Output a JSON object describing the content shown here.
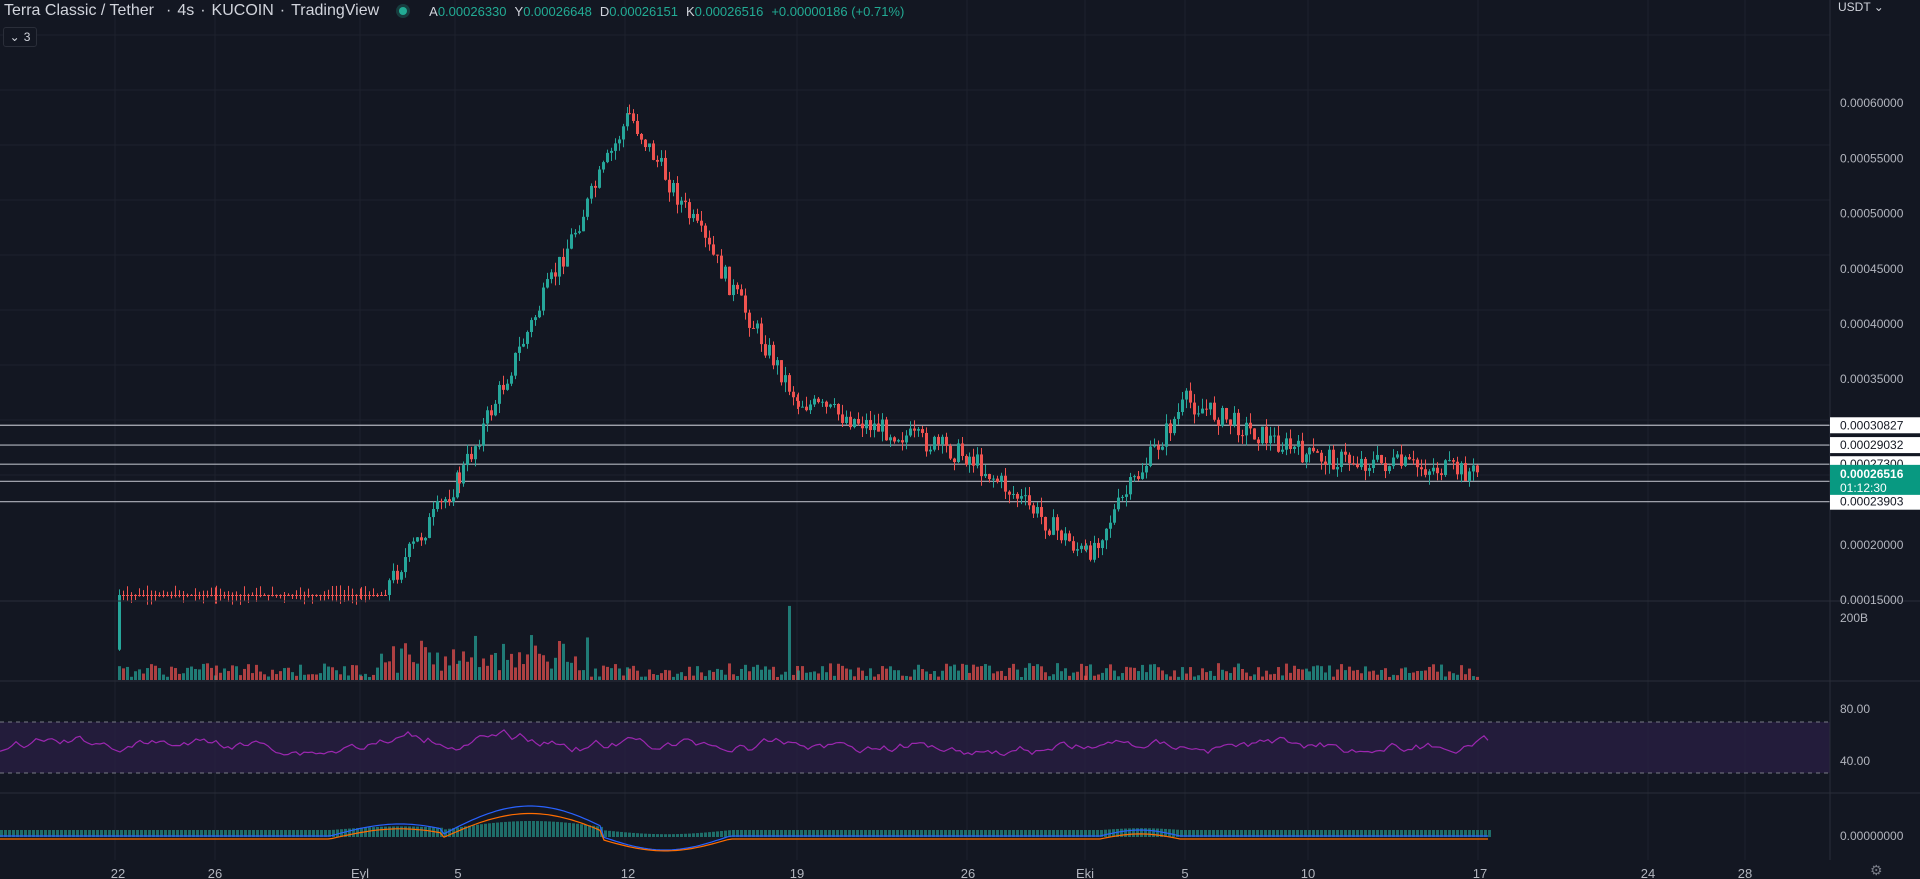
{
  "header": {
    "symbol": "Terra Classic / Tether",
    "interval": "4s",
    "exchange": "KUCOIN",
    "provider": "TradingView",
    "separator": "·",
    "ohlc": {
      "open_label": "A",
      "open": "0.00026330",
      "high_label": "Y",
      "high": "0.00026648",
      "low_label": "D",
      "low": "0.00026151",
      "close_label": "K",
      "close": "0.00026516",
      "change": "+0.00000186 (+0.71%)"
    },
    "indicators_count": "3",
    "indicators_icon": "chevron-down-icon"
  },
  "currency": {
    "label": "USDT",
    "icon": "chevron-down-icon"
  },
  "price_axis": {
    "ticks": [
      "0.00060000",
      "0.00055000",
      "0.00050000",
      "0.00045000",
      "0.00040000",
      "0.00035000",
      "0.00020000",
      "0.00015000"
    ],
    "tick_values": [
      0.0006,
      0.00055,
      0.0005,
      0.00045,
      0.0004,
      0.00035,
      0.0002,
      0.00015
    ],
    "current_price": "0.00026516",
    "countdown": "01:12:30"
  },
  "horizontal_levels": [
    {
      "value": 0.00030827,
      "label": "0.00030827"
    },
    {
      "value": 0.00029032,
      "label": "0.00029032"
    },
    {
      "value": 0.000273,
      "label": "0.00027300"
    },
    {
      "value": 0.0002575,
      "label": "0.00025750"
    },
    {
      "value": 0.00023903,
      "label": "0.00023903"
    }
  ],
  "volume_axis": {
    "label": "200B"
  },
  "rsi_axis": {
    "upper": "80.00",
    "lower": "40.00"
  },
  "macd_axis": {
    "zero": "0.00000000"
  },
  "time_axis": {
    "labels": [
      "22",
      "26",
      "Eyl",
      "5",
      "12",
      "19",
      "26",
      "Eki",
      "5",
      "10",
      "17",
      "24",
      "28"
    ]
  },
  "colors": {
    "background": "#131722",
    "up": "#26a69a",
    "down": "#ef5350",
    "grid": "#1e222d",
    "level_line": "#b2b5be",
    "rsi_line": "#9c27b0",
    "rsi_band": "#2a1f44",
    "macd_line": "#2962ff",
    "signal_line": "#ff6d00",
    "price_tag": "#089981"
  },
  "chart_data": {
    "type": "candlestick",
    "x": [
      "22",
      "26",
      "Eyl",
      "5",
      "12",
      "19",
      "26",
      "Eki",
      "5",
      "10",
      "17"
    ],
    "price_trend": [
      0.000105,
      0.000125,
      0.000128,
      0.00026,
      0.00059,
      0.00033,
      0.00028,
      0.00019,
      0.00033,
      0.00028,
      0.000265
    ],
    "ylim": [
      0.0001,
      0.00062
    ],
    "series": [
      {
        "values": [
          0.000105,
          0.000125,
          0.000128,
          0.00026,
          0.00059,
          0.00033,
          0.00028,
          0.00019,
          0.00033,
          0.00028,
          0.000265
        ]
      }
    ]
  }
}
